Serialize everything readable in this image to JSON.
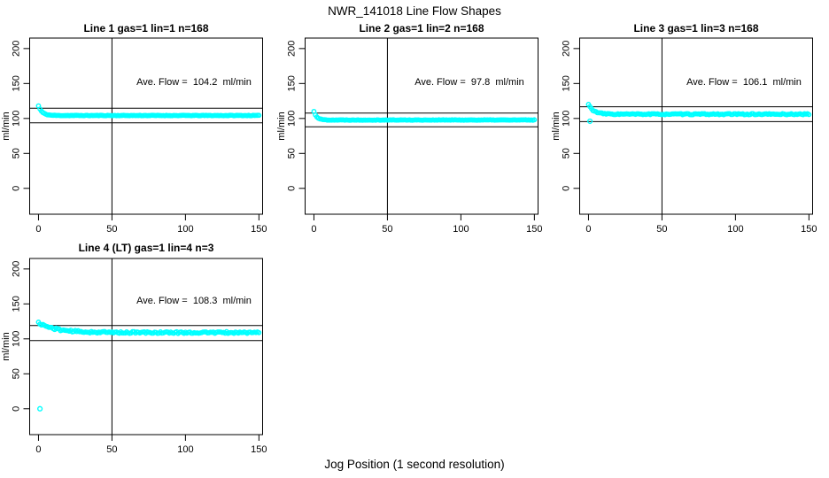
{
  "figure": {
    "title": "NWR_141018  Line Flow Shapes",
    "x_axis_label": "Jog Position (1 second resolution)",
    "background_color": "#ffffff",
    "point_color": "#00ffff",
    "axis_color": "#000000"
  },
  "chart_data": [
    {
      "type": "scatter",
      "title": "Line 1 gas=1 lin=1 n=168",
      "annotation": "Ave. Flow =  104.2  ml/min",
      "ave_flow_ml_min": 104.2,
      "n_runs": 168,
      "ylabel": "ml/min",
      "x_ticks": [
        0,
        50,
        100,
        150
      ],
      "y_ticks": [
        0,
        50,
        100,
        150,
        200
      ],
      "xlim": [
        -6,
        152.5
      ],
      "ylim": [
        -37,
        215
      ],
      "vline_x": 50,
      "hlines": [
        114.6,
        93.8
      ],
      "series": {
        "name": "flow",
        "x_start": 0,
        "x_end": 150,
        "x_step": 1,
        "start_value": 118,
        "steady_value": 104.2,
        "decay_tau": 2.5,
        "noise": 0.35,
        "seed": 11
      },
      "outliers": []
    },
    {
      "type": "scatter",
      "title": "Line 2 gas=1 lin=2 n=168",
      "annotation": "Ave. Flow =  97.8  ml/min",
      "ave_flow_ml_min": 97.8,
      "n_runs": 168,
      "ylabel": "ml/min",
      "x_ticks": [
        0,
        50,
        100,
        150
      ],
      "y_ticks": [
        0,
        50,
        100,
        150,
        200
      ],
      "xlim": [
        -6,
        152.5
      ],
      "ylim": [
        -37,
        215
      ],
      "vline_x": 50,
      "hlines": [
        107.6,
        88.0
      ],
      "series": {
        "name": "flow",
        "x_start": 0,
        "x_end": 150,
        "x_step": 1,
        "start_value": 110,
        "steady_value": 97.8,
        "decay_tau": 2.0,
        "noise": 0.35,
        "seed": 22
      },
      "outliers": []
    },
    {
      "type": "scatter",
      "title": "Line 3 gas=1 lin=3 n=168",
      "annotation": "Ave. Flow =  106.1  ml/min",
      "ave_flow_ml_min": 106.1,
      "n_runs": 168,
      "ylabel": "ml/min",
      "x_ticks": [
        0,
        50,
        100,
        150
      ],
      "y_ticks": [
        0,
        50,
        100,
        150,
        200
      ],
      "xlim": [
        -6,
        152.5
      ],
      "ylim": [
        -37,
        215
      ],
      "vline_x": 50,
      "hlines": [
        116.7,
        95.5
      ],
      "series": {
        "name": "flow",
        "x_start": 0,
        "x_end": 150,
        "x_step": 1,
        "start_value": 120,
        "steady_value": 106.1,
        "decay_tau": 3.5,
        "noise": 0.8,
        "seed": 33
      },
      "outliers": [
        {
          "x": 1,
          "y": 96
        }
      ]
    },
    {
      "type": "scatter",
      "title": "Line 4 (LT) gas=1 lin=4 n=3",
      "annotation": "Ave. Flow =  108.3  ml/min",
      "ave_flow_ml_min": 108.3,
      "n_runs": 3,
      "ylabel": "ml/min",
      "x_ticks": [
        0,
        50,
        100,
        150
      ],
      "y_ticks": [
        0,
        50,
        100,
        150,
        200
      ],
      "xlim": [
        -6,
        152.5
      ],
      "ylim": [
        -37,
        215
      ],
      "vline_x": 50,
      "hlines": [
        119.1,
        97.5
      ],
      "series": {
        "name": "flow",
        "x_start": 0,
        "x_end": 150,
        "x_step": 1,
        "start_value": 123,
        "steady_value": 109,
        "decay_tau": 12,
        "noise": 1.3,
        "seed": 44
      },
      "outliers": [
        {
          "x": 1,
          "y": 0
        }
      ]
    }
  ]
}
